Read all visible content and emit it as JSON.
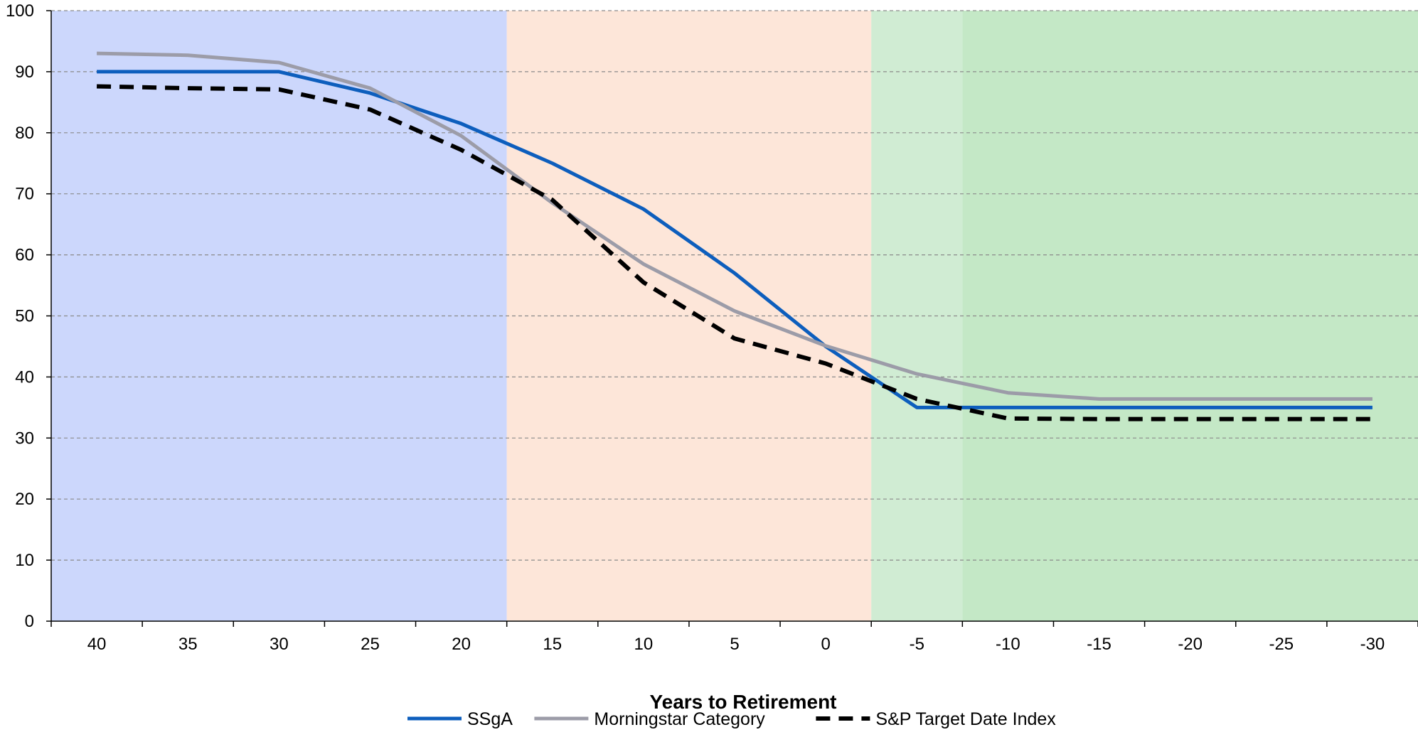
{
  "chart_data": {
    "type": "line",
    "title": "",
    "xlabel": "Years to Retirement",
    "ylabel": "",
    "ylim": [
      0,
      100
    ],
    "yticks": [
      0,
      10,
      20,
      30,
      40,
      50,
      60,
      70,
      80,
      90,
      100
    ],
    "categories": [
      "40",
      "35",
      "30",
      "25",
      "20",
      "15",
      "10",
      "5",
      "0",
      "-5",
      "-10",
      "-15",
      "-20",
      "-25",
      "-30"
    ],
    "grid": "horizontal dashed",
    "legend_position": "bottom",
    "regions": [
      {
        "from_category": "40",
        "to_category": "17.5",
        "color": "#ccd7fc"
      },
      {
        "from_category": "17.5",
        "to_category": "-2.5",
        "color": "#fde6d9"
      },
      {
        "from_category": "-2.5",
        "to_category": "-7.5",
        "color": "#d0ecd3"
      },
      {
        "from_category": "-7.5",
        "to_category": "-32.5",
        "color": "#c4e8c6"
      }
    ],
    "series": [
      {
        "name": "SSgA",
        "color": "#0d5ebd",
        "dash": "solid",
        "values": [
          90,
          90,
          90,
          86.5,
          81.5,
          75,
          67.5,
          57,
          45,
          35,
          35,
          35,
          35,
          35,
          35
        ]
      },
      {
        "name": "Morningstar Category",
        "color": "#9c9ca8",
        "dash": "solid",
        "values": [
          93,
          92.7,
          91.5,
          87.3,
          79.5,
          68.5,
          58.5,
          50.8,
          45.1,
          40.5,
          37.4,
          36.4,
          36.4,
          36.4,
          36.4
        ]
      },
      {
        "name": "S&P Target Date Index",
        "color": "#000000",
        "dash": "dashed",
        "values": [
          87.6,
          87.3,
          87.1,
          83.8,
          77.2,
          69,
          55.5,
          46.3,
          42.2,
          36.4,
          33.2,
          33.1,
          33.1,
          33.1,
          33.1
        ]
      }
    ]
  }
}
